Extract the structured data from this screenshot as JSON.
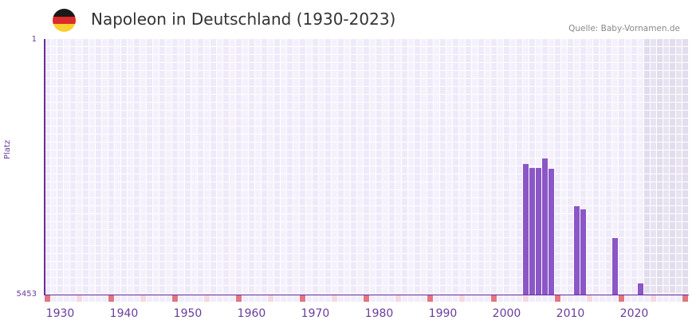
{
  "header": {
    "title": "Napoleon in Deutschland (1930-2023)",
    "source": "Quelle: Baby-Vornamen.de",
    "flag_colors": [
      "#1a1a1a",
      "#dd2a2a",
      "#f8d030"
    ]
  },
  "colors": {
    "bar": "#8b56c6",
    "axis": "#6a2d9a",
    "cell_a": "#efeafa",
    "cell_b": "#f4f1fc",
    "future_a": "#e2ddee",
    "future_b": "#e7e3f0",
    "decade_marker": "#e27580",
    "half_decade_marker": "#f5d8e0",
    "marker_bg": "#f1edfa"
  },
  "chart_data": {
    "type": "bar",
    "title": "Napoleon in Deutschland (1930-2023)",
    "xlabel": "",
    "ylabel": "Platz",
    "y_inverted": true,
    "ylim": [
      1,
      5453
    ],
    "y_ticks": [
      "1",
      "5453"
    ],
    "x_range": [
      1928,
      2028
    ],
    "x_ticks": [
      "1930",
      "1940",
      "1950",
      "1960",
      "1970",
      "1980",
      "1990",
      "2000",
      "2010",
      "2020"
    ],
    "future_shaded_from": 2022,
    "categories": [
      2003,
      2004,
      2005,
      2006,
      2007,
      2011,
      2012,
      2017,
      2021
    ],
    "values": [
      2667,
      2751,
      2751,
      2548,
      2768,
      3567,
      3635,
      4247,
      5215
    ],
    "grid": true,
    "legend": "none"
  }
}
